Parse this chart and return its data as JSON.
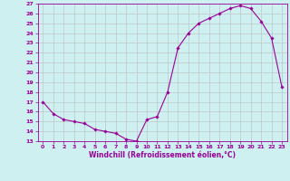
{
  "x": [
    0,
    1,
    2,
    3,
    4,
    5,
    6,
    7,
    8,
    9,
    10,
    11,
    12,
    13,
    14,
    15,
    16,
    17,
    18,
    19,
    20,
    21,
    22,
    23
  ],
  "y": [
    17.0,
    15.8,
    15.2,
    15.0,
    14.8,
    14.2,
    14.0,
    13.8,
    13.2,
    13.0,
    15.2,
    15.5,
    18.0,
    22.5,
    24.0,
    25.0,
    25.5,
    26.0,
    26.5,
    26.8,
    26.5,
    25.2,
    23.5,
    18.5
  ],
  "xlim": [
    -0.5,
    23.5
  ],
  "ylim": [
    13,
    27
  ],
  "xlabel": "Windchill (Refroidissement éolien,°C)",
  "line_color": "#990099",
  "marker_color": "#990099",
  "bg_color": "#cff0f0",
  "grid_color": "#bbbbbb",
  "tick_color": "#990099",
  "label_color": "#990099",
  "yticks": [
    13,
    14,
    15,
    16,
    17,
    18,
    19,
    20,
    21,
    22,
    23,
    24,
    25,
    26,
    27
  ],
  "xticks": [
    0,
    1,
    2,
    3,
    4,
    5,
    6,
    7,
    8,
    9,
    10,
    11,
    12,
    13,
    14,
    15,
    16,
    17,
    18,
    19,
    20,
    21,
    22,
    23
  ]
}
